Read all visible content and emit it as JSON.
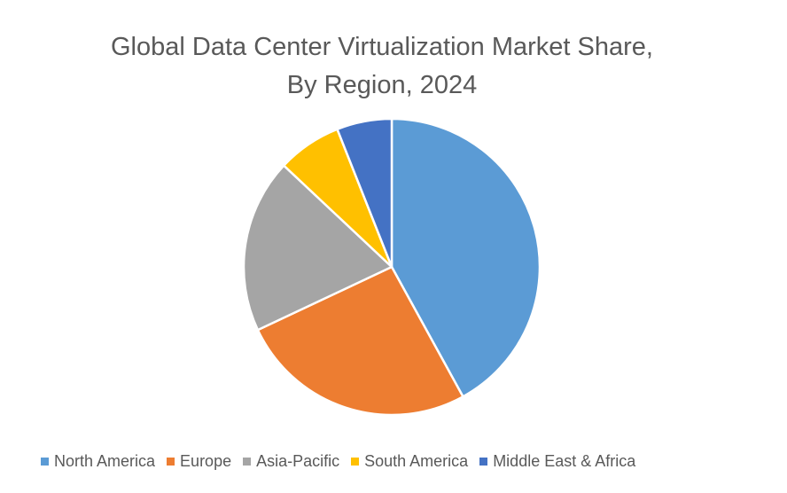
{
  "chart_data": {
    "type": "pie",
    "title_lines": [
      "Global Data Center Virtualization Market Share,",
      "By Region, 2024"
    ],
    "slices": [
      {
        "name": "North America",
        "value": 42,
        "color": "#5b9bd5"
      },
      {
        "name": "Europe",
        "value": 26,
        "color": "#ed7d31"
      },
      {
        "name": "Asia-Pacific",
        "value": 19,
        "color": "#a5a5a5"
      },
      {
        "name": "South America",
        "value": 7,
        "color": "#ffc000"
      },
      {
        "name": "Middle East & Africa",
        "value": 6,
        "color": "#4472c4"
      }
    ],
    "start_angle_deg": 0,
    "direction": "clockwise",
    "legend_position": "bottom",
    "data_labels": false
  }
}
